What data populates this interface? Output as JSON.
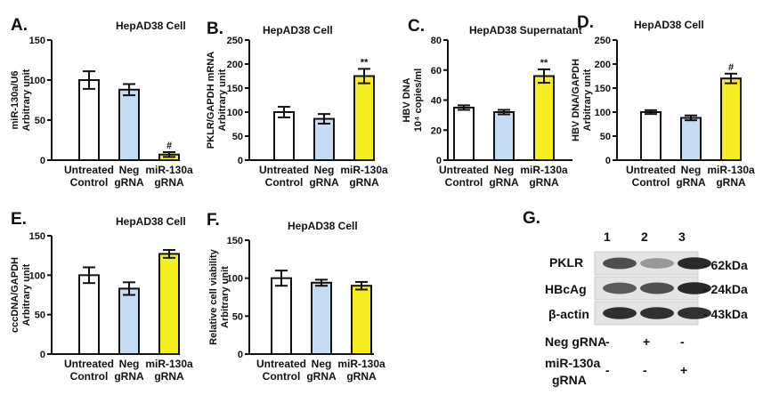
{
  "colors": {
    "untreated": "#ffffff",
    "neg": "#c6dcf4",
    "mir": "#f7ee1f",
    "stroke": "#111111"
  },
  "chart_data": [
    {
      "type": "bar",
      "panel": "A.",
      "title": "HepAD38 Cell",
      "ylabel": [
        "miR-130a/U6",
        "Arbitrary unit"
      ],
      "ylim": [
        0,
        150
      ],
      "yticks": [
        "0",
        "50",
        "100",
        "150"
      ],
      "categories": [
        [
          "Untreated",
          "Control"
        ],
        [
          "Neg",
          "gRNA"
        ],
        [
          "miR-130a",
          "gRNA"
        ]
      ],
      "values": [
        100,
        88,
        7
      ],
      "errors": [
        11,
        7,
        3
      ],
      "annotations": [
        "",
        "",
        "#"
      ]
    },
    {
      "type": "bar",
      "panel": "B.",
      "title": "HepAD38 Cell",
      "ylabel": [
        "PKLR/GAPDH mRNA",
        "Arbitrary unit"
      ],
      "ylim": [
        0,
        250
      ],
      "yticks": [
        "0",
        "50",
        "100",
        "150",
        "200",
        "250"
      ],
      "categories": [
        [
          "Untreated",
          "Control"
        ],
        [
          "Neg",
          "gRNA"
        ],
        [
          "miR-130a",
          "gRNA"
        ]
      ],
      "values": [
        100,
        86,
        175
      ],
      "errors": [
        11,
        10,
        15
      ],
      "annotations": [
        "",
        "",
        "**"
      ]
    },
    {
      "type": "bar",
      "panel": "C.",
      "title": "HepAD38 Supernatant",
      "ylabel": [
        "HBV DNA",
        "10⁴ copies/ml"
      ],
      "ylim": [
        0,
        80
      ],
      "yticks": [
        "0",
        "20",
        "40",
        "60",
        "80"
      ],
      "categories": [
        [
          "Untreated",
          "Control"
        ],
        [
          "Neg",
          "gRNA"
        ],
        [
          "miR-130a",
          "gRNA"
        ]
      ],
      "values": [
        35,
        32,
        56
      ],
      "errors": [
        1.5,
        1.5,
        4.5
      ],
      "annotations": [
        "",
        "",
        "**"
      ]
    },
    {
      "type": "bar",
      "panel": "D.",
      "title": "HepAD38 Cell",
      "ylabel": [
        "HBV DNA/GAPDH",
        "Arbitrary unit"
      ],
      "ylim": [
        0,
        250
      ],
      "yticks": [
        "0",
        "50",
        "100",
        "150",
        "200",
        "250"
      ],
      "categories": [
        [
          "Untreated",
          "Control"
        ],
        [
          "Neg",
          "gRNA"
        ],
        [
          "miR-130a",
          "gRNA"
        ]
      ],
      "values": [
        100,
        88,
        170
      ],
      "errors": [
        4,
        5,
        10
      ],
      "annotations": [
        "",
        "",
        "#"
      ]
    },
    {
      "type": "bar",
      "panel": "E.",
      "title": "HepAD38 Cell",
      "ylabel": [
        "cccDNA/GAPDH",
        "Arbitrary unit"
      ],
      "ylim": [
        0,
        150
      ],
      "yticks": [
        "0",
        "50",
        "100",
        "150"
      ],
      "categories": [
        [
          "Untreated",
          "Control"
        ],
        [
          "Neg",
          "gRNA"
        ],
        [
          "miR-130a",
          "gRNA"
        ]
      ],
      "values": [
        100,
        83,
        127
      ],
      "errors": [
        10,
        8,
        5
      ],
      "annotations": [
        "",
        "",
        ""
      ]
    },
    {
      "type": "bar",
      "panel": "F.",
      "title": "HepAD38 Cell",
      "ylabel": [
        "Relative cell viability",
        "Arbitrary unit"
      ],
      "ylim": [
        0,
        150
      ],
      "yticks": [
        "0",
        "50",
        "100",
        "150"
      ],
      "categories": [
        [
          "Untreated",
          "Control"
        ],
        [
          "Neg",
          "gRNA"
        ],
        [
          "miR-130a",
          "gRNA"
        ]
      ],
      "values": [
        100,
        94,
        90
      ],
      "errors": [
        10,
        4,
        5
      ],
      "annotations": [
        "",
        "",
        ""
      ]
    }
  ],
  "blot": {
    "panel": "G.",
    "lanes": [
      "1",
      "2",
      "3"
    ],
    "rows": [
      {
        "name": "PKLR",
        "size": "- 62kDa",
        "intensity": [
          0.72,
          0.42,
          0.88
        ]
      },
      {
        "name": "HBcAg",
        "size": "- 24kDa",
        "intensity": [
          0.68,
          0.72,
          0.88
        ]
      },
      {
        "name": "β-actin",
        "size": "- 43kDa",
        "intensity": [
          0.85,
          0.85,
          0.85
        ]
      }
    ],
    "conditions": [
      {
        "label": "Neg gRNA",
        "values": [
          "-",
          "+",
          "-"
        ]
      },
      {
        "label": "miR-130a",
        "label2": "gRNA",
        "values": [
          "-",
          "-",
          "+"
        ]
      }
    ]
  }
}
